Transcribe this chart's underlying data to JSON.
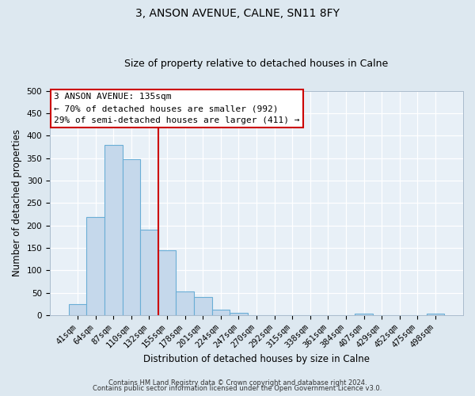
{
  "title": "3, ANSON AVENUE, CALNE, SN11 8FY",
  "subtitle": "Size of property relative to detached houses in Calne",
  "xlabel": "Distribution of detached houses by size in Calne",
  "ylabel": "Number of detached properties",
  "bar_labels": [
    "41sqm",
    "64sqm",
    "87sqm",
    "110sqm",
    "132sqm",
    "155sqm",
    "178sqm",
    "201sqm",
    "224sqm",
    "247sqm",
    "270sqm",
    "292sqm",
    "315sqm",
    "338sqm",
    "361sqm",
    "384sqm",
    "407sqm",
    "429sqm",
    "452sqm",
    "475sqm",
    "498sqm"
  ],
  "bar_values": [
    25,
    218,
    380,
    348,
    190,
    145,
    53,
    40,
    12,
    6,
    0,
    0,
    0,
    0,
    0,
    0,
    3,
    0,
    0,
    0,
    3
  ],
  "bar_color": "#c5d8eb",
  "bar_edge_color": "#6aaed6",
  "vline_color": "#cc0000",
  "vline_label_idx": 4,
  "ylim": [
    0,
    500
  ],
  "yticks": [
    0,
    50,
    100,
    150,
    200,
    250,
    300,
    350,
    400,
    450,
    500
  ],
  "annotation_title": "3 ANSON AVENUE: 135sqm",
  "annotation_line1": "← 70% of detached houses are smaller (992)",
  "annotation_line2": "29% of semi-detached houses are larger (411) →",
  "annotation_box_facecolor": "#ffffff",
  "annotation_box_edgecolor": "#cc0000",
  "footer1": "Contains HM Land Registry data © Crown copyright and database right 2024.",
  "footer2": "Contains public sector information licensed under the Open Government Licence v3.0.",
  "bg_color": "#dde8f0",
  "plot_bg_color": "#e8f0f7",
  "grid_color": "#ffffff",
  "title_fontsize": 10,
  "subtitle_fontsize": 9,
  "tick_fontsize": 7.5,
  "label_fontsize": 8.5,
  "annotation_fontsize": 8,
  "footer_fontsize": 6
}
